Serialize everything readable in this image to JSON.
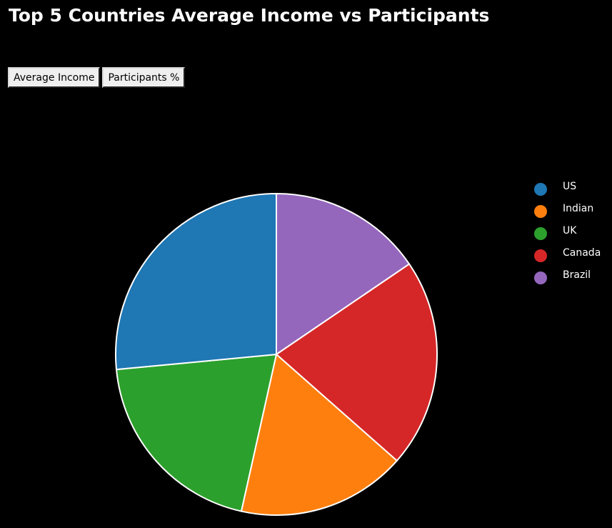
{
  "title": "Top 5 Countries Average Income vs Participants",
  "buttons": {
    "average_income": "Average Income",
    "participants": "Participants %"
  },
  "chart_data": {
    "type": "pie",
    "title": "Top 5 Countries Average Income vs Participants",
    "categories": [
      "US",
      "Indian",
      "UK",
      "Canada",
      "Brazil"
    ],
    "values": [
      26.5,
      17,
      20,
      21,
      15.5
    ],
    "colors": [
      "#1f77b4",
      "#ff7f0e",
      "#2ca02c",
      "#d62728",
      "#9467bd"
    ],
    "legend_position": "right"
  }
}
